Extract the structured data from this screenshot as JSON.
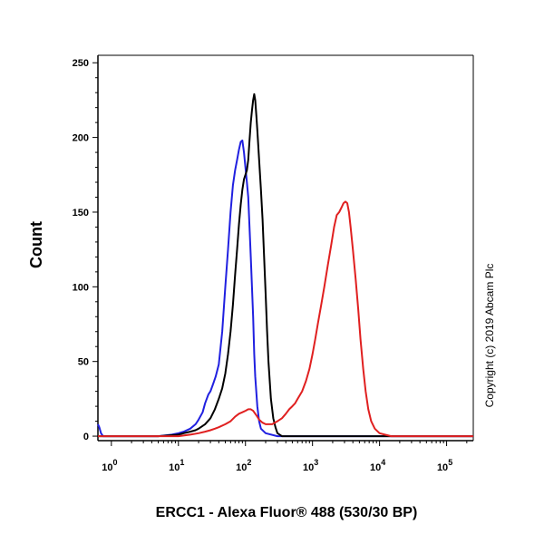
{
  "chart_data": {
    "type": "line",
    "title": "",
    "xlabel": "ERCC1 - Alexa Fluor® 488 (530/30 BP)",
    "ylabel": "Count",
    "xscale": "log",
    "xlim": [
      0.63,
      250000
    ],
    "ylim": [
      -3,
      255
    ],
    "grid": false,
    "legend": "none",
    "y_ticks": [
      0,
      50,
      100,
      150,
      200,
      250
    ],
    "x_ticks": [
      {
        "base": "10",
        "exp": "0",
        "value": 1
      },
      {
        "base": "10",
        "exp": "1",
        "value": 10
      },
      {
        "base": "10",
        "exp": "2",
        "value": 100
      },
      {
        "base": "10",
        "exp": "3",
        "value": 1000
      },
      {
        "base": "10",
        "exp": "4",
        "value": 10000
      },
      {
        "base": "10",
        "exp": "5",
        "value": 100000
      }
    ],
    "annotation": "Copyright (c) 2019 Abcam Plc",
    "series": [
      {
        "color": "#2020e0",
        "points": [
          [
            0.63,
            8
          ],
          [
            0.66,
            6
          ],
          [
            0.7,
            2
          ],
          [
            0.75,
            0
          ],
          [
            1,
            0
          ],
          [
            3,
            0
          ],
          [
            5,
            0
          ],
          [
            8,
            1
          ],
          [
            10,
            2
          ],
          [
            12,
            3
          ],
          [
            15,
            5
          ],
          [
            18,
            8
          ],
          [
            20,
            11
          ],
          [
            23,
            16
          ],
          [
            25,
            22
          ],
          [
            28,
            28
          ],
          [
            30,
            30
          ],
          [
            33,
            35
          ],
          [
            36,
            40
          ],
          [
            40,
            48
          ],
          [
            45,
            70
          ],
          [
            50,
            100
          ],
          [
            55,
            125
          ],
          [
            60,
            150
          ],
          [
            65,
            168
          ],
          [
            70,
            178
          ],
          [
            75,
            185
          ],
          [
            80,
            192
          ],
          [
            85,
            197
          ],
          [
            90,
            198
          ],
          [
            95,
            190
          ],
          [
            100,
            180
          ],
          [
            105,
            170
          ],
          [
            110,
            160
          ],
          [
            115,
            140
          ],
          [
            120,
            120
          ],
          [
            125,
            100
          ],
          [
            130,
            80
          ],
          [
            135,
            55
          ],
          [
            140,
            40
          ],
          [
            150,
            20
          ],
          [
            160,
            10
          ],
          [
            170,
            5
          ],
          [
            200,
            2
          ],
          [
            300,
            0
          ],
          [
            250000,
            0
          ]
        ]
      },
      {
        "color": "#000000",
        "points": [
          [
            0.63,
            0
          ],
          [
            5,
            0
          ],
          [
            10,
            1
          ],
          [
            12,
            2
          ],
          [
            15,
            3
          ],
          [
            18,
            4
          ],
          [
            20,
            5
          ],
          [
            25,
            8
          ],
          [
            30,
            12
          ],
          [
            35,
            18
          ],
          [
            40,
            25
          ],
          [
            45,
            32
          ],
          [
            50,
            42
          ],
          [
            55,
            55
          ],
          [
            60,
            70
          ],
          [
            65,
            88
          ],
          [
            70,
            108
          ],
          [
            75,
            125
          ],
          [
            80,
            142
          ],
          [
            85,
            155
          ],
          [
            90,
            165
          ],
          [
            95,
            172
          ],
          [
            100,
            175
          ],
          [
            105,
            178
          ],
          [
            110,
            185
          ],
          [
            115,
            198
          ],
          [
            120,
            210
          ],
          [
            125,
            218
          ],
          [
            130,
            225
          ],
          [
            135,
            229
          ],
          [
            140,
            225
          ],
          [
            145,
            215
          ],
          [
            150,
            205
          ],
          [
            155,
            195
          ],
          [
            160,
            185
          ],
          [
            170,
            165
          ],
          [
            180,
            145
          ],
          [
            190,
            120
          ],
          [
            200,
            95
          ],
          [
            210,
            70
          ],
          [
            220,
            50
          ],
          [
            240,
            25
          ],
          [
            260,
            12
          ],
          [
            280,
            6
          ],
          [
            300,
            2
          ],
          [
            350,
            0
          ],
          [
            250000,
            0
          ]
        ]
      },
      {
        "color": "#e02020",
        "points": [
          [
            0.63,
            0
          ],
          [
            5,
            0
          ],
          [
            10,
            0
          ],
          [
            15,
            1
          ],
          [
            20,
            2
          ],
          [
            25,
            3
          ],
          [
            30,
            4
          ],
          [
            35,
            5
          ],
          [
            40,
            6
          ],
          [
            50,
            8
          ],
          [
            60,
            10
          ],
          [
            70,
            13
          ],
          [
            80,
            15
          ],
          [
            90,
            16
          ],
          [
            100,
            17
          ],
          [
            110,
            18
          ],
          [
            120,
            18
          ],
          [
            130,
            17
          ],
          [
            140,
            15
          ],
          [
            150,
            13
          ],
          [
            160,
            11
          ],
          [
            180,
            9
          ],
          [
            200,
            8
          ],
          [
            220,
            8
          ],
          [
            250,
            8
          ],
          [
            300,
            10
          ],
          [
            350,
            12
          ],
          [
            400,
            15
          ],
          [
            450,
            18
          ],
          [
            500,
            20
          ],
          [
            550,
            22
          ],
          [
            600,
            25
          ],
          [
            700,
            30
          ],
          [
            800,
            37
          ],
          [
            900,
            45
          ],
          [
            1000,
            55
          ],
          [
            1100,
            65
          ],
          [
            1200,
            75
          ],
          [
            1350,
            88
          ],
          [
            1500,
            100
          ],
          [
            1700,
            115
          ],
          [
            1900,
            128
          ],
          [
            2100,
            140
          ],
          [
            2300,
            148
          ],
          [
            2500,
            150
          ],
          [
            2700,
            153
          ],
          [
            2900,
            156
          ],
          [
            3100,
            157
          ],
          [
            3300,
            156
          ],
          [
            3500,
            150
          ],
          [
            3700,
            140
          ],
          [
            4000,
            125
          ],
          [
            4400,
            105
          ],
          [
            4800,
            85
          ],
          [
            5200,
            65
          ],
          [
            5700,
            45
          ],
          [
            6200,
            30
          ],
          [
            6800,
            18
          ],
          [
            7500,
            10
          ],
          [
            8500,
            5
          ],
          [
            10000,
            2
          ],
          [
            12000,
            1
          ],
          [
            15000,
            0
          ],
          [
            250000,
            0
          ]
        ]
      }
    ]
  }
}
